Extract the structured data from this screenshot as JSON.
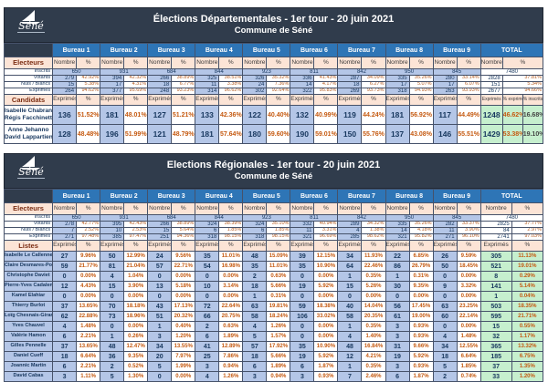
{
  "tables": [
    {
      "title": "Élections Départementales - 1er tour - 20 juin 2021",
      "subtitle": "Commune de Séné",
      "logo_text": "Séné",
      "electors_label": "Electeurs",
      "group_label": "Candidats",
      "nombre_label": "Nombre",
      "pct_label": "%",
      "total_label": "TOTAL",
      "bureaus": [
        "Bureau 1",
        "Bureau 2",
        "Bureau 3",
        "Bureau 4",
        "Bureau 5",
        "Bureau 6",
        "Bureau 7",
        "Bureau 8",
        "Bureau 9"
      ],
      "group_col_headers": [
        "Exprimés",
        "%"
      ],
      "total_sub_headers": [
        "Exprimés",
        "% exprimés",
        "% inscrits"
      ],
      "electors_rows": [
        {
          "label": "Inscrits",
          "span": true,
          "values": [
            "650",
            "931",
            "684",
            "844",
            "923",
            "811",
            "842",
            "950",
            "845"
          ],
          "total": "7480"
        },
        {
          "label": "Votants",
          "values": [
            [
              "279",
              "42.92%"
            ],
            [
              "394",
              "42.32%"
            ],
            [
              "266",
              "38.89%"
            ],
            [
              "325",
              "38.51%"
            ],
            [
              "326",
              "35.32%"
            ],
            [
              "336",
              "41.43%"
            ],
            [
              "287",
              "34.09%"
            ],
            [
              "335",
              "35.26%"
            ],
            [
              "280",
              "33.14%"
            ]
          ],
          "total": [
            "2828",
            "37.81%"
          ]
        },
        {
          "label": "Nuls / Blancs",
          "values": [
            [
              "15",
              "5.38%"
            ],
            [
              "17",
              "4.31%"
            ],
            [
              "18",
              "6.77%"
            ],
            [
              "11",
              "3.38%"
            ],
            [
              "24",
              "7.36%"
            ],
            [
              "14",
              "4.17%"
            ],
            [
              "18",
              "6.27%"
            ],
            [
              "17",
              "5.07%"
            ],
            [
              "17",
              "6.07%"
            ]
          ],
          "total": [
            "151",
            "5.34%"
          ]
        },
        {
          "label": "Exprimés",
          "values": [
            [
              "264",
              "94.62%"
            ],
            [
              "377",
              "95.69%"
            ],
            [
              "248",
              "93.23%"
            ],
            [
              "314",
              "96.62%"
            ],
            [
              "302",
              "92.64%"
            ],
            [
              "322",
              "95.83%"
            ],
            [
              "269",
              "93.73%"
            ],
            [
              "318",
              "94.93%"
            ],
            [
              "263",
              "93.93%"
            ]
          ],
          "total": [
            "2677",
            "94.66%"
          ]
        }
      ],
      "rows": [
        {
          "name_lines": [
            "Isabelle Chabran",
            "Régis Facchinetti"
          ],
          "bureaus": [
            [
              "136",
              "51.52%"
            ],
            [
              "181",
              "48.01%"
            ],
            [
              "127",
              "51.21%"
            ],
            [
              "133",
              "42.36%"
            ],
            [
              "122",
              "40.40%"
            ],
            [
              "132",
              "40.99%"
            ],
            [
              "119",
              "44.24%"
            ],
            [
              "181",
              "56.92%"
            ],
            [
              "117",
              "44.49%"
            ]
          ],
          "total": [
            "1248",
            "46.62%",
            "16.68%"
          ]
        },
        {
          "name_lines": [
            "Anne Jehanno",
            "David Lappartient"
          ],
          "bureaus": [
            [
              "128",
              "48.48%"
            ],
            [
              "196",
              "51.99%"
            ],
            [
              "121",
              "48.79%"
            ],
            [
              "181",
              "57.64%"
            ],
            [
              "180",
              "59.60%"
            ],
            [
              "190",
              "59.01%"
            ],
            [
              "150",
              "55.76%"
            ],
            [
              "137",
              "43.08%"
            ],
            [
              "146",
              "55.51%"
            ]
          ],
          "total": [
            "1429",
            "53.38%",
            "19.10%"
          ]
        }
      ]
    },
    {
      "title": "Elections Régionales - 1er tour - 20 juin 2021",
      "subtitle": "Commune de Séné",
      "logo_text": "Séné",
      "electors_label": "Electeurs",
      "group_label": "Listes",
      "nombre_label": "Nombre",
      "pct_label": "%",
      "total_label": "TOTAL",
      "bureaus": [
        "Bureau 1",
        "Bureau 2",
        "Bureau 3",
        "Bureau 4",
        "Bureau 5",
        "Bureau 6",
        "Bureau 7",
        "Bureau 8",
        "Bureau 9"
      ],
      "group_col_headers": [
        "Exprimés",
        "%"
      ],
      "total_sub_headers": [
        "Exprimés",
        "%"
      ],
      "electors_rows": [
        {
          "label": "Inscrits",
          "span": true,
          "values": [
            "650",
            "931",
            "684",
            "844",
            "923",
            "811",
            "842",
            "950",
            "845"
          ],
          "total": "7480"
        },
        {
          "label": "Votants",
          "values": [
            [
              "278",
              "42.77%"
            ],
            [
              "395",
              "42.43%"
            ],
            [
              "266",
              "38.89%"
            ],
            [
              "324",
              "38.39%"
            ],
            [
              "324",
              "35.10%"
            ],
            [
              "332",
              "40.94%"
            ],
            [
              "289",
              "34.32%"
            ],
            [
              "335",
              "35.26%"
            ],
            [
              "282",
              "33.37%"
            ]
          ],
          "total": [
            "2825",
            "37.77%"
          ]
        },
        {
          "label": "Nuls / Blancs",
          "values": [
            [
              "7",
              "2.52%"
            ],
            [
              "10",
              "2.53%"
            ],
            [
              "15",
              "5.64%"
            ],
            [
              "6",
              "1.85%"
            ],
            [
              "6",
              "1.85%"
            ],
            [
              "11",
              "3.31%"
            ],
            [
              "4",
              "1.38%"
            ],
            [
              "14",
              "4.18%"
            ],
            [
              "11",
              "3.90%"
            ]
          ],
          "total": [
            "84",
            "2.97%"
          ]
        },
        {
          "label": "Exprimés",
          "values": [
            [
              "271",
              "97.48%"
            ],
            [
              "385",
              "97.47%"
            ],
            [
              "251",
              "94.36%"
            ],
            [
              "318",
              "98.15%"
            ],
            [
              "318",
              "98.15%"
            ],
            [
              "321",
              "96.69%"
            ],
            [
              "285",
              "98.62%"
            ],
            [
              "321",
              "95.82%"
            ],
            [
              "271",
              "96.10%"
            ]
          ],
          "total": [
            "2741",
            "97.03%"
          ]
        }
      ],
      "rows": [
        {
          "name_lines": [
            "Isabelle Le Callennec"
          ],
          "bureaus": [
            [
              "27",
              "9.96%"
            ],
            [
              "50",
              "12.99%"
            ],
            [
              "24",
              "9.56%"
            ],
            [
              "35",
              "11.01%"
            ],
            [
              "48",
              "15.09%"
            ],
            [
              "39",
              "12.15%"
            ],
            [
              "34",
              "11.93%"
            ],
            [
              "22",
              "6.85%"
            ],
            [
              "26",
              "9.59%"
            ]
          ],
          "total": [
            "305",
            "11.13%"
          ]
        },
        {
          "name_lines": [
            "Claire Desmares-Poirier"
          ],
          "bureaus": [
            [
              "59",
              "21.77%"
            ],
            [
              "81",
              "21.04%"
            ],
            [
              "57",
              "22.71%"
            ],
            [
              "54",
              "16.98%"
            ],
            [
              "35",
              "11.01%"
            ],
            [
              "35",
              "10.90%"
            ],
            [
              "64",
              "22.46%"
            ],
            [
              "86",
              "26.79%"
            ],
            [
              "50",
              "18.45%"
            ]
          ],
          "total": [
            "521",
            "19.01%"
          ]
        },
        {
          "name_lines": [
            "Christophe Daviet"
          ],
          "bureaus": [
            [
              "0",
              "0.00%"
            ],
            [
              "4",
              "1.04%"
            ],
            [
              "0",
              "0.00%"
            ],
            [
              "0",
              "0.00%"
            ],
            [
              "2",
              "0.63%"
            ],
            [
              "0",
              "0.00%"
            ],
            [
              "1",
              "0.35%"
            ],
            [
              "1",
              "0.31%"
            ],
            [
              "0",
              "0.00%"
            ]
          ],
          "total": [
            "8",
            "0.29%"
          ]
        },
        {
          "name_lines": [
            "Pierre-Yves Cadalen"
          ],
          "bureaus": [
            [
              "12",
              "4.43%"
            ],
            [
              "15",
              "3.90%"
            ],
            [
              "13",
              "5.18%"
            ],
            [
              "10",
              "3.14%"
            ],
            [
              "18",
              "5.66%"
            ],
            [
              "19",
              "5.92%"
            ],
            [
              "15",
              "5.26%"
            ],
            [
              "30",
              "9.35%"
            ],
            [
              "9",
              "3.32%"
            ]
          ],
          "total": [
            "141",
            "5.14%"
          ]
        },
        {
          "name_lines": [
            "Kamel Elahiar"
          ],
          "bureaus": [
            [
              "0",
              "0.00%"
            ],
            [
              "0",
              "0.00%"
            ],
            [
              "0",
              "0.00%"
            ],
            [
              "0",
              "0.00%"
            ],
            [
              "1",
              "0.31%"
            ],
            [
              "0",
              "0.00%"
            ],
            [
              "0",
              "0.00%"
            ],
            [
              "0",
              "0.00%"
            ],
            [
              "0",
              "0.00%"
            ]
          ],
          "total": [
            "1",
            "0.04%"
          ]
        },
        {
          "name_lines": [
            "Thierry Burlot"
          ],
          "bureaus": [
            [
              "37",
              "13.65%"
            ],
            [
              "70",
              "18.18%"
            ],
            [
              "43",
              "17.13%"
            ],
            [
              "72",
              "22.64%"
            ],
            [
              "63",
              "19.81%"
            ],
            [
              "59",
              "18.38%"
            ],
            [
              "40",
              "14.04%"
            ],
            [
              "56",
              "17.45%"
            ],
            [
              "63",
              "23.25%"
            ]
          ],
          "total": [
            "503",
            "18.35%"
          ]
        },
        {
          "name_lines": [
            "Loïg Chesnais-Girard"
          ],
          "bureaus": [
            [
              "62",
              "22.88%"
            ],
            [
              "73",
              "18.96%"
            ],
            [
              "51",
              "20.32%"
            ],
            [
              "66",
              "20.75%"
            ],
            [
              "58",
              "18.24%"
            ],
            [
              "106",
              "33.02%"
            ],
            [
              "58",
              "20.35%"
            ],
            [
              "61",
              "19.00%"
            ],
            [
              "60",
              "22.14%"
            ]
          ],
          "total": [
            "595",
            "21.71%"
          ]
        },
        {
          "name_lines": [
            "Yves Chauvel"
          ],
          "bureaus": [
            [
              "4",
              "1.48%"
            ],
            [
              "0",
              "0.00%"
            ],
            [
              "1",
              "0.40%"
            ],
            [
              "2",
              "0.63%"
            ],
            [
              "4",
              "1.26%"
            ],
            [
              "0",
              "0.00%"
            ],
            [
              "1",
              "0.35%"
            ],
            [
              "3",
              "0.93%"
            ],
            [
              "0",
              "0.00%"
            ]
          ],
          "total": [
            "15",
            "0.55%"
          ]
        },
        {
          "name_lines": [
            "Valérie Hamon"
          ],
          "bureaus": [
            [
              "6",
              "2.21%"
            ],
            [
              "1",
              "0.26%"
            ],
            [
              "3",
              "1.20%"
            ],
            [
              "6",
              "1.89%"
            ],
            [
              "5",
              "1.57%"
            ],
            [
              "0",
              "0.00%"
            ],
            [
              "4",
              "1.40%"
            ],
            [
              "3",
              "0.93%"
            ],
            [
              "4",
              "1.48%"
            ]
          ],
          "total": [
            "32",
            "1.17%"
          ]
        },
        {
          "name_lines": [
            "Gilles Pennelle"
          ],
          "bureaus": [
            [
              "37",
              "13.65%"
            ],
            [
              "48",
              "12.47%"
            ],
            [
              "34",
              "13.55%"
            ],
            [
              "41",
              "12.89%"
            ],
            [
              "57",
              "17.92%"
            ],
            [
              "35",
              "10.90%"
            ],
            [
              "48",
              "16.84%"
            ],
            [
              "31",
              "9.66%"
            ],
            [
              "34",
              "12.55%"
            ]
          ],
          "total": [
            "365",
            "13.32%"
          ]
        },
        {
          "name_lines": [
            "Daniel Cueff"
          ],
          "bureaus": [
            [
              "18",
              "6.64%"
            ],
            [
              "36",
              "9.35%"
            ],
            [
              "20",
              "7.97%"
            ],
            [
              "25",
              "7.86%"
            ],
            [
              "18",
              "5.66%"
            ],
            [
              "19",
              "5.92%"
            ],
            [
              "12",
              "4.21%"
            ],
            [
              "19",
              "5.92%"
            ],
            [
              "18",
              "6.64%"
            ]
          ],
          "total": [
            "185",
            "6.75%"
          ]
        },
        {
          "name_lines": [
            "Joannic Martin"
          ],
          "bureaus": [
            [
              "6",
              "2.21%"
            ],
            [
              "2",
              "0.52%"
            ],
            [
              "5",
              "1.99%"
            ],
            [
              "3",
              "0.94%"
            ],
            [
              "6",
              "1.89%"
            ],
            [
              "6",
              "1.87%"
            ],
            [
              "1",
              "0.35%"
            ],
            [
              "3",
              "0.93%"
            ],
            [
              "5",
              "1.85%"
            ]
          ],
          "total": [
            "37",
            "1.35%"
          ]
        },
        {
          "name_lines": [
            "David Cabas"
          ],
          "bureaus": [
            [
              "3",
              "1.11%"
            ],
            [
              "5",
              "1.30%"
            ],
            [
              "0",
              "0.00%"
            ],
            [
              "4",
              "1.26%"
            ],
            [
              "3",
              "0.94%"
            ],
            [
              "3",
              "0.93%"
            ],
            [
              "7",
              "2.46%"
            ],
            [
              "6",
              "1.87%"
            ],
            [
              "2",
              "0.74%"
            ]
          ],
          "total": [
            "33",
            "1.20%"
          ]
        }
      ]
    }
  ]
}
